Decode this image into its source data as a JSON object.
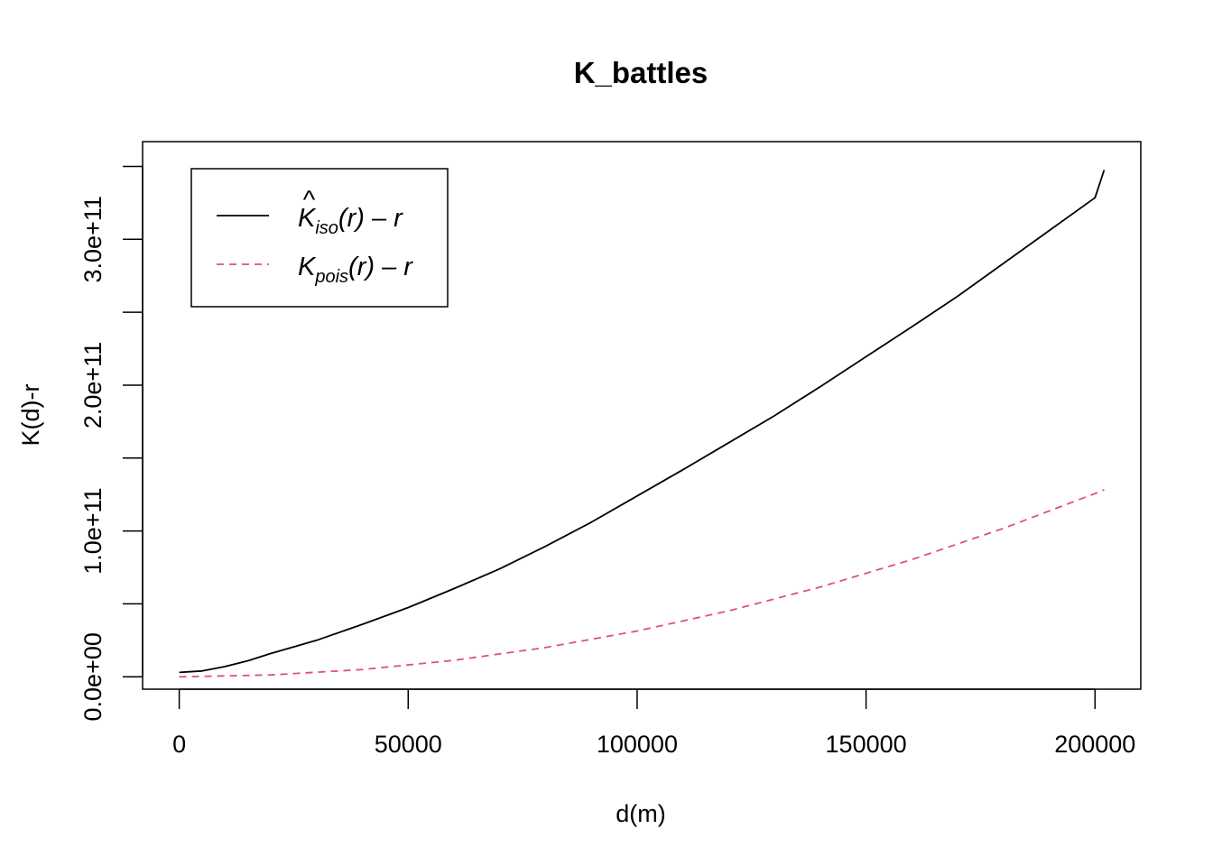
{
  "chart_data": {
    "type": "line",
    "title": "K_battles",
    "xlabel": "d(m)",
    "ylabel": "K(d)-r",
    "xlim": [
      -8000,
      210000
    ],
    "ylim": [
      -8500000000.0,
      367000000000.0
    ],
    "x_ticks": [
      0,
      50000,
      100000,
      150000,
      200000
    ],
    "x_tick_labels": [
      "0",
      "50000",
      "100000",
      "150000",
      "200000"
    ],
    "y_ticks": [
      0,
      50000000000,
      100000000000,
      150000000000,
      200000000000,
      250000000000,
      300000000000,
      350000000000
    ],
    "y_tick_labels": [
      "0.0e+00",
      "",
      "1.0e+11",
      "",
      "2.0e+11",
      "",
      "3.0e+11",
      ""
    ],
    "grid": false,
    "legend_position": "top-left",
    "legend": [
      {
        "main": "K",
        "hat": "^",
        "sub": "iso",
        "rest": "(r) – r",
        "color": "#000000",
        "dash": "solid"
      },
      {
        "main": "K",
        "hat": "",
        "sub": "pois",
        "rest": "(r) – r",
        "color": "#DF536B",
        "dash": "dashed"
      }
    ],
    "series": [
      {
        "label": "K_iso(r) - r",
        "color": "#000000",
        "dash": "solid",
        "x": [
          0,
          5000,
          10000,
          15000,
          20000,
          25000,
          30000,
          40000,
          50000,
          60000,
          70000,
          80000,
          90000,
          100000,
          110000,
          120000,
          130000,
          140000,
          150000,
          160000,
          170000,
          180000,
          190000,
          200000,
          202000
        ],
        "y": [
          3000000000,
          4000000000,
          7000000000,
          11000000000,
          16000000000,
          20500000000,
          25000000000,
          36000000000,
          47500000000,
          60500000000,
          74000000000,
          89500000000,
          106000000000,
          124000000000,
          142000000000,
          160500000000,
          179000000000,
          199000000000,
          219500000000,
          240000000000,
          261000000000,
          283500000000,
          306000000000,
          328500000000,
          347500000000
        ]
      },
      {
        "label": "K_pois(r) - r",
        "color": "#DF536B",
        "dash": "dashed",
        "x": [
          0,
          20000,
          40000,
          60000,
          80000,
          100000,
          120000,
          140000,
          160000,
          180000,
          200000,
          202000
        ],
        "y": [
          0,
          1300000000,
          5000000000,
          11300000000,
          20100000000,
          31400000000,
          45200000000,
          61600000000,
          80400000000,
          101800000000,
          125700000000,
          128200000000
        ]
      }
    ]
  }
}
